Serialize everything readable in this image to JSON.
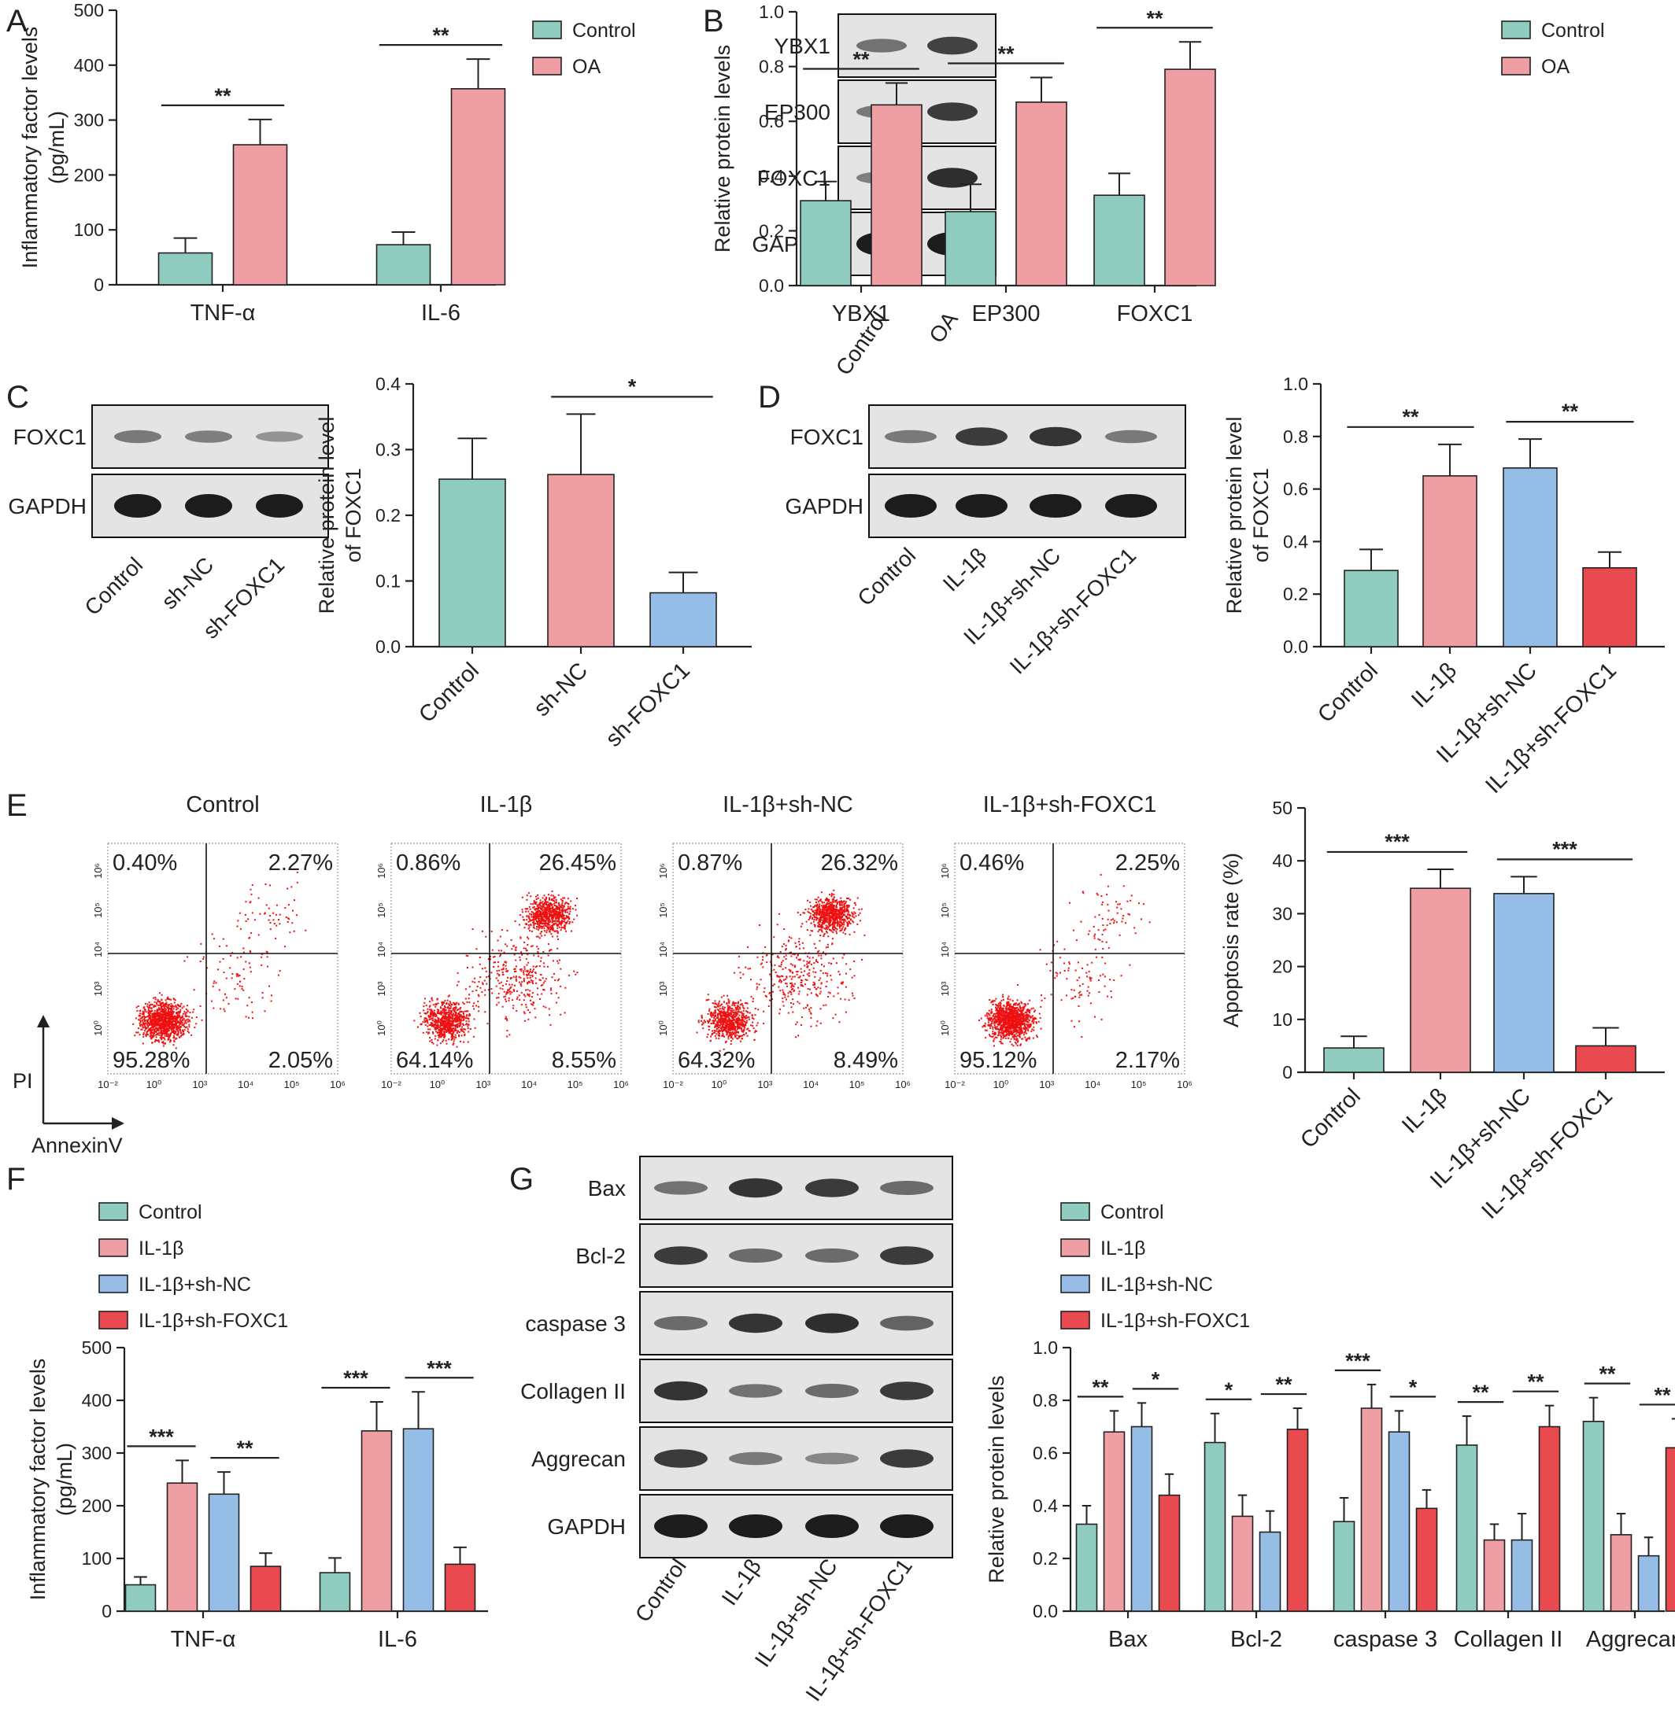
{
  "colors": {
    "Control": "#8fcbbf",
    "OA": "#ef9ea3",
    "IL-1β": "#ef9ea3",
    "IL-1β+sh-NC": "#96bde6",
    "IL-1β+sh-FOXC1": "#e84a4f",
    "sh-NC": "#ef9ea3",
    "sh-FOXC1": "#96bde6",
    "dots": "#ee1111"
  },
  "panels": {
    "A": {
      "letter": "A"
    },
    "B": {
      "letter": "B"
    },
    "C": {
      "letter": "C"
    },
    "D": {
      "letter": "D"
    },
    "E": {
      "letter": "E",
      "axis_y": "PI",
      "axis_x": "AnnexinV",
      "tick_labels": [
        "10⁻²",
        "10⁰",
        "10³",
        "10⁴",
        "10⁵",
        "10⁶"
      ]
    },
    "F": {
      "letter": "F"
    },
    "G": {
      "letter": "G"
    }
  },
  "blots": {
    "B": {
      "rows": [
        "YBX1",
        "EP300",
        "FOXC1",
        "GAPDH"
      ],
      "lanes": [
        "Control",
        "OA"
      ]
    },
    "C": {
      "rows": [
        "FOXC1",
        "GAPDH"
      ],
      "lanes": [
        "Control",
        "sh-NC",
        "sh-FOXC1"
      ]
    },
    "D": {
      "rows": [
        "FOXC1",
        "GAPDH"
      ],
      "lanes": [
        "Control",
        "IL-1β",
        "IL-1β+sh-NC",
        "IL-1β+sh-FOXC1"
      ]
    },
    "G": {
      "rows": [
        "Bax",
        "Bcl-2",
        "caspase 3",
        "Collagen II",
        "Aggrecan",
        "GAPDH"
      ],
      "lanes": [
        "Control",
        "IL-1β",
        "IL-1β+sh-NC",
        "IL-1β+sh-FOXC1"
      ]
    }
  },
  "flow": [
    {
      "title": "Control",
      "q_tl": "0.40%",
      "q_tr": "2.27%",
      "q_bl": "95.28%",
      "q_br": "2.05%"
    },
    {
      "title": "IL-1β",
      "q_tl": "0.86%",
      "q_tr": "26.45%",
      "q_bl": "64.14%",
      "q_br": "8.55%"
    },
    {
      "title": "IL-1β+sh-NC",
      "q_tl": "0.87%",
      "q_tr": "26.32%",
      "q_bl": "64.32%",
      "q_br": "8.49%"
    },
    {
      "title": "IL-1β+sh-FOXC1",
      "q_tl": "0.46%",
      "q_tr": "2.25%",
      "q_bl": "95.12%",
      "q_br": "2.17%"
    }
  ],
  "chart_data": [
    {
      "id": "A",
      "type": "bar",
      "ylabel": "Inflammatory factor levels\n(pg/mL)",
      "ylim": [
        0,
        500
      ],
      "yticks": [
        0,
        100,
        200,
        300,
        400,
        500
      ],
      "categories": [
        "TNF-α",
        "IL-6"
      ],
      "series": [
        {
          "name": "Control",
          "values": [
            58,
            73
          ],
          "errors": [
            27,
            23
          ]
        },
        {
          "name": "OA",
          "values": [
            255,
            357
          ],
          "errors": [
            46,
            54
          ]
        }
      ],
      "legend": [
        "Control",
        "OA"
      ],
      "annotations": [
        {
          "text": "**",
          "cat": 0,
          "from": 0,
          "to": 1
        },
        {
          "text": "**",
          "cat": 1,
          "from": 0,
          "to": 1
        }
      ]
    },
    {
      "id": "B",
      "type": "bar",
      "ylabel": "Relative protein levels",
      "ylim": [
        0,
        1.0
      ],
      "yticks": [
        "0.0",
        "0.2",
        "0.4",
        "0.6",
        "0.8",
        "1.0"
      ],
      "categories": [
        "YBX1",
        "EP300",
        "FOXC1"
      ],
      "series": [
        {
          "name": "Control",
          "values": [
            0.31,
            0.27,
            0.33
          ],
          "errors": [
            0.07,
            0.1,
            0.08
          ]
        },
        {
          "name": "OA",
          "values": [
            0.66,
            0.67,
            0.79
          ],
          "errors": [
            0.08,
            0.09,
            0.1
          ]
        }
      ],
      "legend": [
        "Control",
        "OA"
      ],
      "annotations": [
        {
          "text": "**",
          "cat": 0,
          "from": 0,
          "to": 1
        },
        {
          "text": "**",
          "cat": 1,
          "from": 0,
          "to": 1
        },
        {
          "text": "**",
          "cat": 2,
          "from": 0,
          "to": 1
        }
      ]
    },
    {
      "id": "C",
      "type": "bar",
      "ylabel": "Relative protein level\nof FOXC1",
      "ylim": [
        0,
        0.4
      ],
      "yticks": [
        "0.0",
        "0.1",
        "0.2",
        "0.3",
        "0.4"
      ],
      "categories": [
        "Control",
        "sh-NC",
        "sh-FOXC1"
      ],
      "values": [
        0.255,
        0.262,
        0.082
      ],
      "errors": [
        0.062,
        0.092,
        0.031
      ],
      "bar_colors": [
        "Control",
        "sh-NC",
        "sh-FOXC1"
      ],
      "annotations": [
        {
          "text": "*",
          "from": 1,
          "to": 2
        }
      ]
    },
    {
      "id": "D",
      "type": "bar",
      "ylabel": "Relative protein level\nof FOXC1",
      "ylim": [
        0,
        1.0
      ],
      "yticks": [
        "0.0",
        "0.2",
        "0.4",
        "0.6",
        "0.8",
        "1.0"
      ],
      "categories": [
        "Control",
        "IL-1β",
        "IL-1β+sh-NC",
        "IL-1β+sh-FOXC1"
      ],
      "values": [
        0.29,
        0.65,
        0.68,
        0.3
      ],
      "errors": [
        0.08,
        0.12,
        0.11,
        0.06
      ],
      "bar_colors": [
        "Control",
        "IL-1β",
        "IL-1β+sh-NC",
        "IL-1β+sh-FOXC1"
      ],
      "annotations": [
        {
          "text": "**",
          "from": 0,
          "to": 1
        },
        {
          "text": "**",
          "from": 2,
          "to": 3
        }
      ]
    },
    {
      "id": "E",
      "type": "bar",
      "ylabel": "Apoptosis rate (%)",
      "ylim": [
        0,
        50
      ],
      "yticks": [
        0,
        10,
        20,
        30,
        40,
        50
      ],
      "categories": [
        "Control",
        "IL-1β",
        "IL-1β+sh-NC",
        "IL-1β+sh-FOXC1"
      ],
      "values": [
        4.6,
        34.8,
        33.8,
        5.0
      ],
      "errors": [
        2.2,
        3.6,
        3.2,
        3.4
      ],
      "bar_colors": [
        "Control",
        "IL-1β",
        "IL-1β+sh-NC",
        "IL-1β+sh-FOXC1"
      ],
      "annotations": [
        {
          "text": "***",
          "from": 0,
          "to": 1
        },
        {
          "text": "***",
          "from": 2,
          "to": 3
        }
      ]
    },
    {
      "id": "F",
      "type": "bar",
      "ylabel": "Inflammatory factor levels\n(pg/mL)",
      "ylim": [
        0,
        500
      ],
      "yticks": [
        0,
        100,
        200,
        300,
        400,
        500
      ],
      "categories": [
        "TNF-α",
        "IL-6"
      ],
      "series": [
        {
          "name": "Control",
          "values": [
            50,
            73
          ],
          "errors": [
            15,
            28
          ]
        },
        {
          "name": "IL-1β",
          "values": [
            243,
            342
          ],
          "errors": [
            43,
            55
          ]
        },
        {
          "name": "IL-1β+sh-NC",
          "values": [
            222,
            346
          ],
          "errors": [
            42,
            70
          ]
        },
        {
          "name": "IL-1β+sh-FOXC1",
          "values": [
            85,
            89
          ],
          "errors": [
            25,
            32
          ]
        }
      ],
      "legend": [
        "Control",
        "IL-1β",
        "IL-1β+sh-NC",
        "IL-1β+sh-FOXC1"
      ],
      "annotations": [
        {
          "text": "***",
          "cat": 0,
          "from": 0,
          "to": 1
        },
        {
          "text": "**",
          "cat": 0,
          "from": 2,
          "to": 3
        },
        {
          "text": "***",
          "cat": 1,
          "from": 0,
          "to": 1
        },
        {
          "text": "***",
          "cat": 1,
          "from": 2,
          "to": 3
        }
      ]
    },
    {
      "id": "G",
      "type": "bar",
      "ylabel": "Relative protein levels",
      "ylim": [
        0,
        1.0
      ],
      "yticks": [
        "0.0",
        "0.2",
        "0.4",
        "0.6",
        "0.8",
        "1.0"
      ],
      "categories": [
        "Bax",
        "Bcl-2",
        "caspase 3",
        "Collagen II",
        "Aggrecan"
      ],
      "series": [
        {
          "name": "Control",
          "values": [
            0.33,
            0.64,
            0.34,
            0.63,
            0.72
          ],
          "errors": [
            0.07,
            0.11,
            0.09,
            0.11,
            0.09
          ]
        },
        {
          "name": "IL-1β",
          "values": [
            0.68,
            0.36,
            0.77,
            0.27,
            0.29
          ],
          "errors": [
            0.08,
            0.08,
            0.09,
            0.06,
            0.08
          ]
        },
        {
          "name": "IL-1β+sh-NC",
          "values": [
            0.7,
            0.3,
            0.68,
            0.27,
            0.21
          ],
          "errors": [
            0.09,
            0.08,
            0.08,
            0.1,
            0.07
          ]
        },
        {
          "name": "IL-1β+sh-FOXC1",
          "values": [
            0.44,
            0.69,
            0.39,
            0.7,
            0.62
          ],
          "errors": [
            0.08,
            0.08,
            0.07,
            0.08,
            0.11
          ]
        }
      ],
      "legend": [
        "Control",
        "IL-1β",
        "IL-1β+sh-NC",
        "IL-1β+sh-FOXC1"
      ],
      "annotations": [
        {
          "text": "**",
          "cat": 0,
          "from": 0,
          "to": 1
        },
        {
          "text": "*",
          "cat": 0,
          "from": 2,
          "to": 3
        },
        {
          "text": "*",
          "cat": 1,
          "from": 0,
          "to": 1
        },
        {
          "text": "**",
          "cat": 1,
          "from": 2,
          "to": 3
        },
        {
          "text": "***",
          "cat": 2,
          "from": 0,
          "to": 1
        },
        {
          "text": "*",
          "cat": 2,
          "from": 2,
          "to": 3
        },
        {
          "text": "**",
          "cat": 3,
          "from": 0,
          "to": 1
        },
        {
          "text": "**",
          "cat": 3,
          "from": 2,
          "to": 3
        },
        {
          "text": "**",
          "cat": 4,
          "from": 0,
          "to": 1
        },
        {
          "text": "**",
          "cat": 4,
          "from": 2,
          "to": 3
        }
      ]
    }
  ]
}
